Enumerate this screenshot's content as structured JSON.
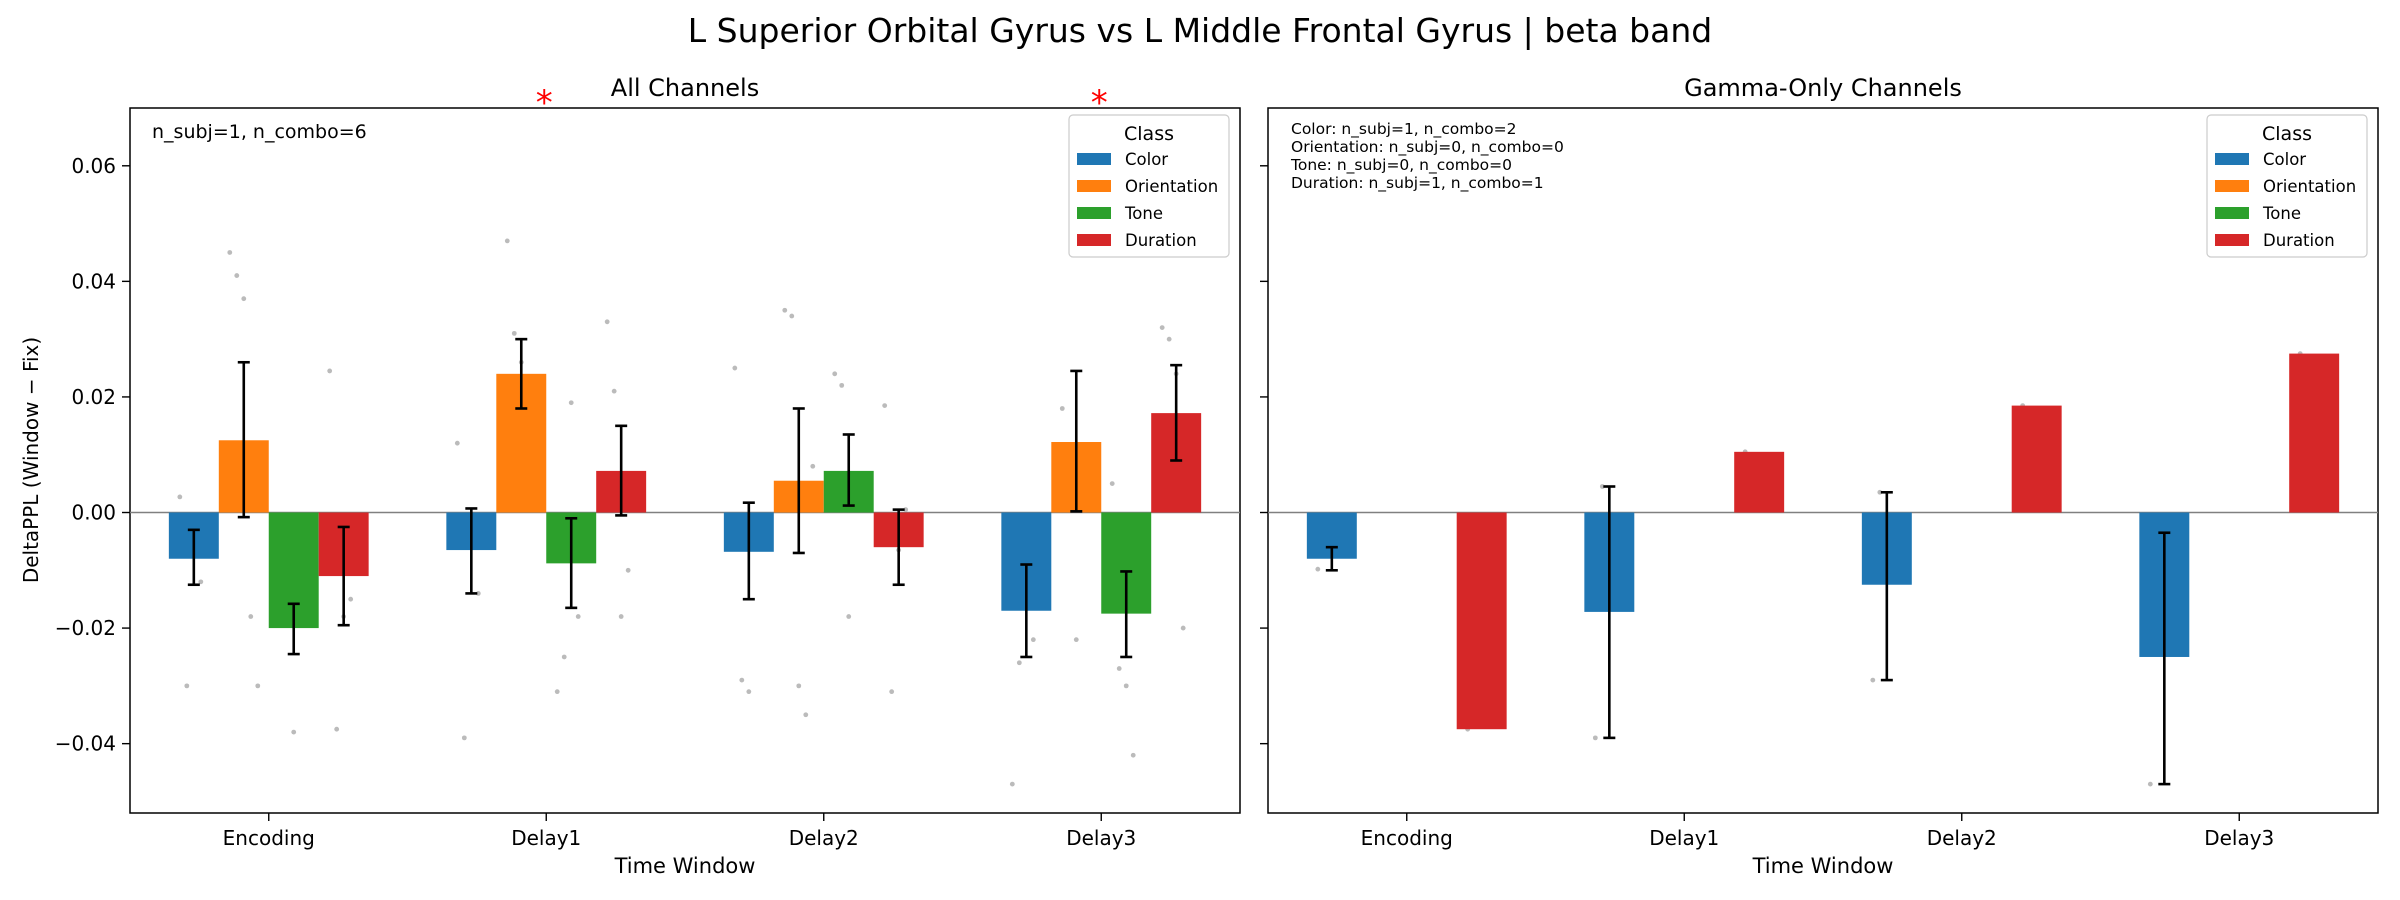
{
  "figure_title": "L Superior Orbital Gyrus vs L Middle Frontal Gyrus  |  beta band",
  "colors": {
    "Color": "#1f77b4",
    "Orientation": "#ff7f0e",
    "Tone": "#2ca02c",
    "Duration": "#d62728",
    "significance": "#ff0000",
    "points": "#bbbbbb"
  },
  "legend_title": "Class",
  "legend_labels": [
    "Color",
    "Orientation",
    "Tone",
    "Duration"
  ],
  "chart_data": [
    {
      "type": "bar",
      "title": "All Channels",
      "xlabel": "Time Window",
      "ylabel": "DeltaPPL (Window − Fix)",
      "ylim": [
        -0.052,
        0.07
      ],
      "yticks": [
        -0.04,
        -0.02,
        0.0,
        0.02,
        0.04,
        0.06
      ],
      "ytick_labels": [
        "−0.04",
        "−0.02",
        "0.00",
        "0.02",
        "0.04",
        "0.06"
      ],
      "categories": [
        "Encoding",
        "Delay1",
        "Delay2",
        "Delay3"
      ],
      "legend_position": "top-right",
      "annotation": "n_subj=1, n_combo=6",
      "significance": [
        {
          "category": "Delay1",
          "label": "*"
        },
        {
          "category": "Delay3",
          "label": "*"
        }
      ],
      "series": [
        {
          "name": "Color",
          "values": [
            -0.008,
            -0.0065,
            -0.0068,
            -0.017
          ],
          "err_low": [
            -0.0125,
            -0.014,
            -0.015,
            -0.025
          ],
          "err_high": [
            -0.003,
            0.0007,
            0.0017,
            -0.009
          ],
          "points": [
            [
              0.0027,
              -0.03,
              -0.0065,
              -0.012
            ],
            [
              0.012,
              -0.039,
              -0.003,
              -0.014
            ],
            [
              0.025,
              -0.029,
              -0.031,
              -0.0048
            ],
            [
              -0.047,
              -0.026,
              -0.004,
              -0.022
            ]
          ]
        },
        {
          "name": "Orientation",
          "values": [
            0.0125,
            0.024,
            0.0055,
            0.0122
          ],
          "err_low": [
            -0.0008,
            0.018,
            -0.007,
            0.0002
          ],
          "err_high": [
            0.026,
            0.03,
            0.018,
            0.0245
          ],
          "points": [
            [
              0.045,
              0.041,
              0.037,
              -0.018,
              -0.03
            ],
            [
              0.047,
              0.031,
              0.026,
              0.009,
              0.004
            ],
            [
              0.035,
              0.034,
              -0.03,
              -0.035,
              0.008
            ],
            [
              0.018,
              0.01,
              -0.022,
              0.001
            ]
          ]
        },
        {
          "name": "Tone",
          "values": [
            -0.02,
            -0.0088,
            0.0072,
            -0.0175
          ],
          "err_low": [
            -0.0245,
            -0.0165,
            0.0012,
            -0.025
          ],
          "err_high": [
            -0.0158,
            -0.001,
            0.0135,
            -0.0102
          ],
          "points": [
            [
              -0.015,
              -0.011,
              -0.038,
              -0.012
            ],
            [
              -0.031,
              -0.025,
              0.019,
              -0.018
            ],
            [
              0.024,
              0.022,
              -0.018,
              0.0035
            ],
            [
              0.005,
              -0.027,
              -0.03,
              -0.042
            ]
          ]
        },
        {
          "name": "Duration",
          "values": [
            -0.011,
            0.0072,
            -0.006,
            0.0172
          ],
          "err_low": [
            -0.0195,
            -0.0005,
            -0.0125,
            0.009
          ],
          "err_high": [
            -0.0025,
            0.015,
            0.0005,
            0.0255
          ],
          "points": [
            [
              0.0245,
              -0.0375,
              -0.018,
              -0.015
            ],
            [
              0.033,
              0.021,
              -0.018,
              -0.01
            ],
            [
              0.0185,
              -0.031,
              -0.0065,
              0.0005
            ],
            [
              0.032,
              0.03,
              0.024,
              -0.02
            ]
          ]
        }
      ]
    },
    {
      "type": "bar",
      "title": "Gamma-Only Channels",
      "xlabel": "Time Window",
      "ylim": [
        -0.052,
        0.07
      ],
      "categories": [
        "Encoding",
        "Delay1",
        "Delay2",
        "Delay3"
      ],
      "legend_position": "top-right",
      "annotation_lines": [
        "Color: n_subj=1, n_combo=2",
        "Orientation: n_subj=0, n_combo=0",
        "Tone: n_subj=0, n_combo=0",
        "Duration: n_subj=1, n_combo=1"
      ],
      "series": [
        {
          "name": "Color",
          "values": [
            -0.008,
            -0.0172,
            -0.0125,
            -0.025
          ],
          "err_low": [
            -0.01,
            -0.039,
            -0.029,
            -0.047
          ],
          "err_high": [
            -0.006,
            0.0045,
            0.0035,
            -0.0035
          ],
          "points": [
            [
              -0.0098,
              -0.0062
            ],
            [
              -0.039,
              0.0045
            ],
            [
              -0.029,
              0.0035
            ],
            [
              -0.047,
              -0.0035
            ]
          ]
        },
        {
          "name": "Orientation",
          "values": [
            null,
            null,
            null,
            null
          ]
        },
        {
          "name": "Tone",
          "values": [
            null,
            null,
            null,
            null
          ]
        },
        {
          "name": "Duration",
          "values": [
            -0.0375,
            0.0105,
            0.0185,
            0.0275
          ],
          "points": [
            [
              -0.0375
            ],
            [
              0.0105
            ],
            [
              0.0185
            ],
            [
              0.0275
            ]
          ]
        }
      ]
    }
  ]
}
